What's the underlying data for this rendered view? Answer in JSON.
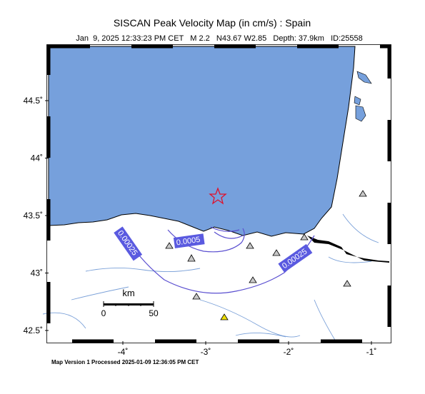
{
  "map": {
    "title": "SISCAN Peak Velocity Map (in cm/s) : Spain",
    "subtitle": "Jan  9, 2025 12:33:23 PM CET   M 2.2   N43.67 W2.85   Depth: 37.9km   ID:25558",
    "lat_ticks": [
      {
        "value": 44.5,
        "label": "44.5˚"
      },
      {
        "value": 44,
        "label": "44˚"
      },
      {
        "value": 43.5,
        "label": "43.5˚"
      },
      {
        "value": 43,
        "label": "43˚"
      },
      {
        "value": 42.5,
        "label": "42.5˚"
      }
    ],
    "lon_ticks": [
      {
        "value": -4,
        "label": "-4˚"
      },
      {
        "value": -3,
        "label": "-3˚"
      },
      {
        "value": -2,
        "label": "-2˚"
      },
      {
        "value": -1,
        "label": "-1˚"
      }
    ],
    "contour_labels": [
      "0.00025",
      "0.0005",
      "0.00025"
    ],
    "scale": {
      "unit": "km",
      "start": "0",
      "end": "50"
    },
    "footer": "Map Version 1 Processed 2025-01-09 12:36:05 PM CET"
  }
}
